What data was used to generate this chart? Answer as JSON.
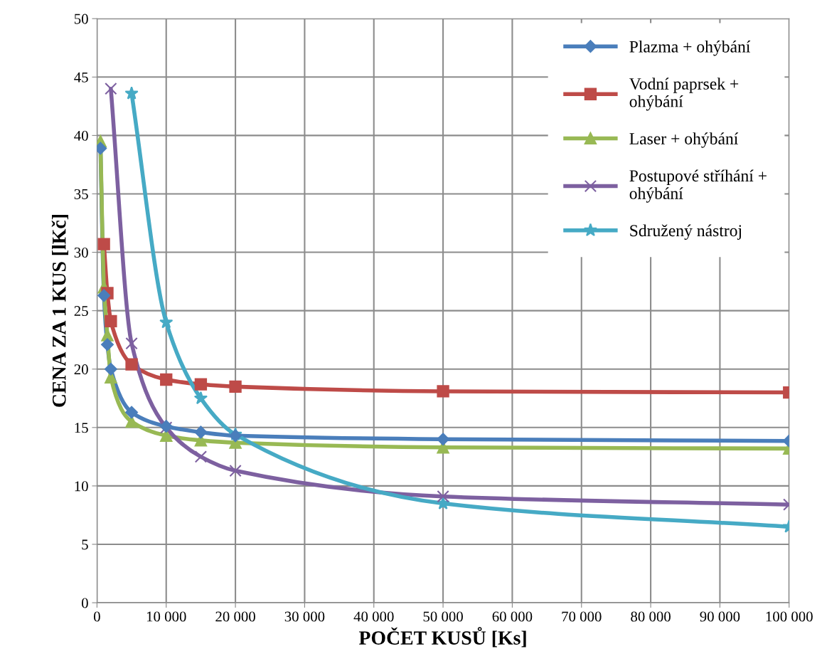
{
  "chart_data": {
    "type": "line",
    "xlabel": "POČET KUSŮ [Ks]",
    "ylabel": "CENA ZA 1 KUS [lKč]",
    "x": [
      500,
      1000,
      1500,
      2000,
      5000,
      10000,
      15000,
      20000,
      50000,
      100000
    ],
    "series": [
      {
        "name": "Plazma + ohýbání",
        "color": "#4a7ebb",
        "marker": "diamond",
        "values": [
          38.9,
          26.3,
          22.1,
          20.0,
          16.3,
          15.1,
          14.6,
          14.3,
          14.0,
          13.85
        ]
      },
      {
        "name": "Vodní paprsek +\nohýbání",
        "color": "#be4b48",
        "marker": "square",
        "values": [
          null,
          30.7,
          26.5,
          24.1,
          20.4,
          19.1,
          18.7,
          18.5,
          18.1,
          18.0
        ]
      },
      {
        "name": "Laser + ohýbání",
        "color": "#98b954",
        "marker": "triangle",
        "values": [
          39.5,
          27.0,
          22.9,
          19.3,
          15.5,
          14.3,
          13.9,
          13.7,
          13.3,
          13.2
        ]
      },
      {
        "name": "Postupové stříhání +\nohýbání",
        "color": "#7d60a0",
        "marker": "cross",
        "values": [
          null,
          null,
          null,
          44.0,
          22.2,
          15.0,
          12.5,
          11.3,
          9.1,
          8.4
        ]
      },
      {
        "name": "Sdružený nástroj",
        "color": "#46aac5",
        "marker": "star",
        "values": [
          null,
          null,
          null,
          null,
          43.6,
          24.0,
          17.5,
          14.4,
          8.5,
          6.5
        ]
      }
    ],
    "xlim": [
      0,
      100000
    ],
    "xticks": [
      0,
      {
        "value": 10000,
        "label": "10 000"
      },
      {
        "value": 20000,
        "label": "20 000"
      },
      {
        "value": 30000,
        "label": "30 000"
      },
      {
        "value": 40000,
        "label": "40 000"
      },
      {
        "value": 50000,
        "label": "50 000"
      },
      {
        "value": 60000,
        "label": "60 000"
      },
      {
        "value": 70000,
        "label": "70 000"
      },
      {
        "value": 80000,
        "label": "80 000"
      },
      {
        "value": 90000,
        "label": "90 000"
      },
      {
        "value": 100000,
        "label": "100 000"
      }
    ],
    "ylim": [
      0,
      50
    ],
    "yticks": [
      0,
      5,
      10,
      15,
      20,
      25,
      30,
      35,
      40,
      45,
      50
    ],
    "grid": true,
    "legend": "top right"
  }
}
